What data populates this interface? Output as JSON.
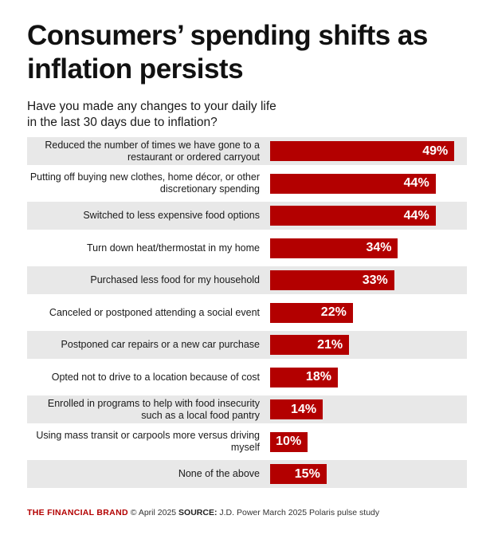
{
  "title": "Consumers’ spending shifts as inflation persists",
  "subtitle": "Have you made any changes to your daily life in the last 30 days due to inflation?",
  "chart_data": {
    "type": "bar",
    "orientation": "horizontal",
    "title": "Consumers’ spending shifts as inflation persists",
    "subtitle": "Have you made any changes to your daily life in the last 30 days due to inflation?",
    "categories": [
      "Reduced the number of times we have gone to a restaurant or ordered carryout",
      "Putting off buying new clothes, home décor, or other discretionary spending",
      "Switched to less expensive food options",
      "Turn down heat/thermostat in my home",
      "Purchased less food for my household",
      "Canceled or postponed attending a social event",
      "Postponed car repairs or a new car purchase",
      "Opted not to drive to a location because of cost",
      "Enrolled in programs to help with food insecurity such as a local food pantry",
      "Using mass transit or carpools more versus driving myself",
      "None of the above"
    ],
    "values": [
      49,
      44,
      44,
      34,
      33,
      22,
      21,
      18,
      14,
      10,
      15
    ],
    "value_labels": [
      "49%",
      "44%",
      "44%",
      "34%",
      "33%",
      "22%",
      "21%",
      "18%",
      "14%",
      "10%",
      "15%"
    ],
    "unit": "%",
    "xlim": [
      0,
      100
    ],
    "xlabel": "",
    "ylabel": "",
    "grid": false,
    "bar_color": "#b30000",
    "row_shading_color": "#e8e8e8"
  },
  "footer": {
    "brand": "THE FINANCIAL BRAND",
    "copyright": "© April 2025",
    "source_label": "SOURCE:",
    "source_text": "J.D. Power March 2025 Polaris pulse study"
  }
}
